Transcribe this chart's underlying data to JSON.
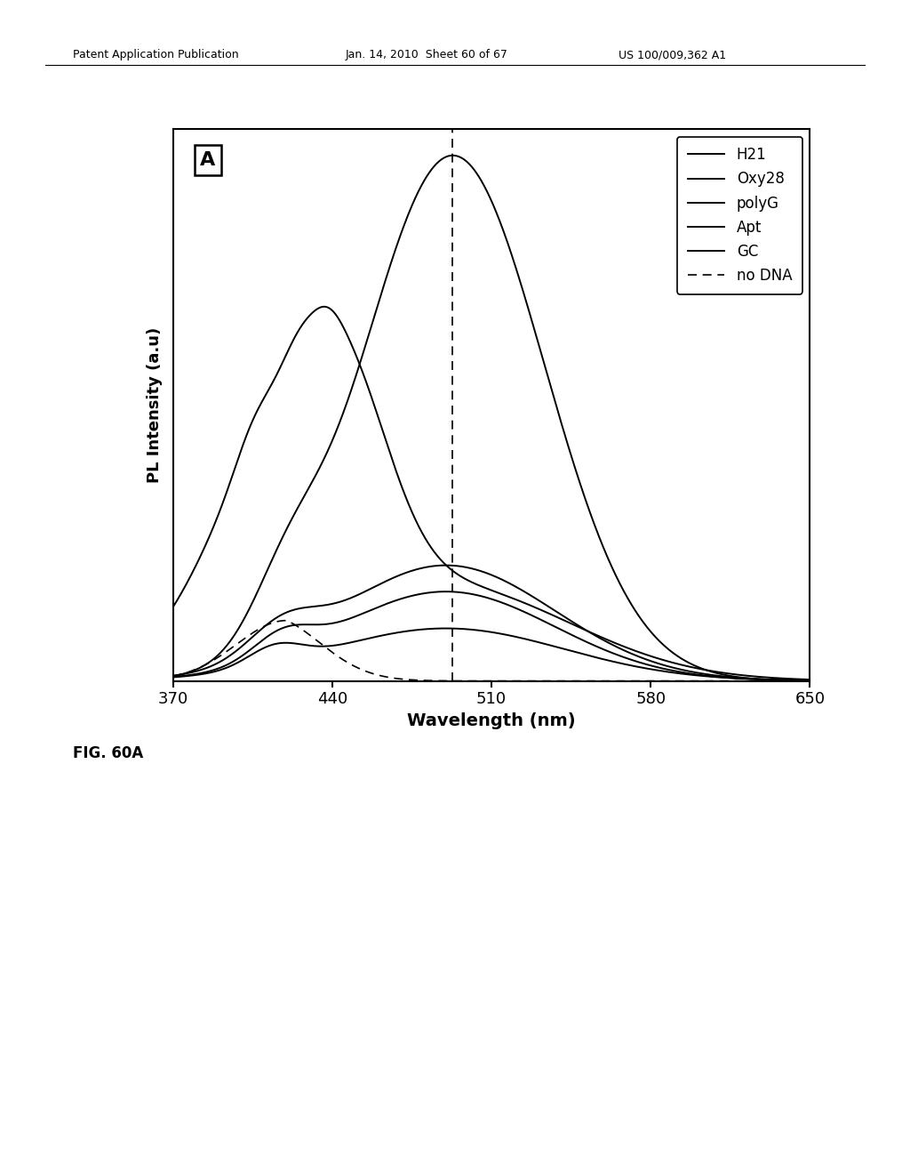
{
  "xlabel": "Wavelength (nm)",
  "ylabel": "PL Intensity (a.u)",
  "xlim": [
    370,
    650
  ],
  "ylim": [
    0,
    1.05
  ],
  "dashed_line_x": 493,
  "fig_label": "FIG. 60A",
  "panel_label": "A",
  "xticks": [
    370,
    440,
    510,
    580,
    650
  ],
  "background_color": "#ffffff",
  "header_left": "Patent Application Publication",
  "header_mid": "Jan. 14, 2010  Sheet 60 of 67",
  "header_right": "US 100/009,362 A1"
}
